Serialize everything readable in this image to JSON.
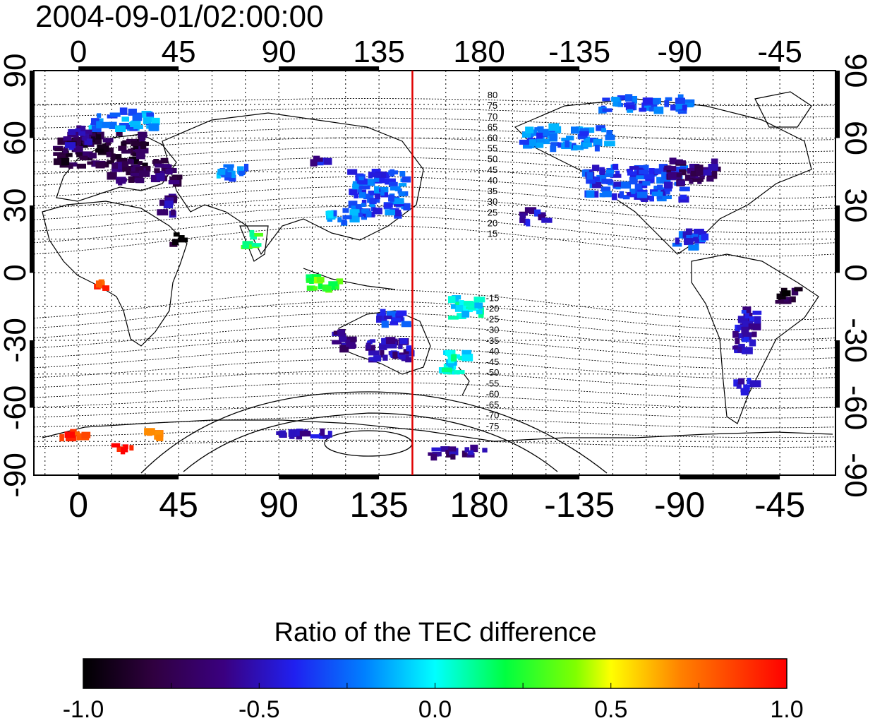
{
  "timestamp": "2004-09-01/02:00:00",
  "colorbar": {
    "title": "Ratio of the TEC difference",
    "ticks": [
      "-1.0",
      "-0.5",
      "0.0",
      "0.5",
      "1.0"
    ],
    "min": -1.0,
    "max": 1.0,
    "colors": [
      "#000000",
      "#3a0070",
      "#2a1ff0",
      "#0090ff",
      "#00ffff",
      "#00ff40",
      "#a0ff00",
      "#ffff00",
      "#ff8000",
      "#ff0000"
    ]
  },
  "axes": {
    "lon_ticks": [
      "0",
      "45",
      "90",
      "135",
      "180",
      "-135",
      "-90",
      "-45"
    ],
    "lat_ticks": [
      "90",
      "60",
      "30",
      "0",
      "-30",
      "-60",
      "-90"
    ]
  },
  "terminator_lon": 150,
  "contour_labels_north": [
    "80",
    "75",
    "70",
    "65",
    "60",
    "55",
    "50",
    "45",
    "40",
    "35",
    "30",
    "25",
    "20",
    "15"
  ],
  "contour_labels_south": [
    "-15",
    "-20",
    "-25",
    "-30",
    "-35",
    "-40",
    "-45",
    "-50",
    "-55",
    "-60",
    "-65",
    "-70",
    "-75"
  ],
  "chart_data": {
    "type": "heatmap",
    "projection": "cylindrical (longitude 0 to 360, latitude -90 to 90)",
    "xlim": [
      -20,
      340
    ],
    "ylim": [
      -90,
      90
    ],
    "value_range": [
      -1.0,
      1.0
    ],
    "regions": [
      {
        "lon": 10,
        "lat": 55,
        "w": 40,
        "h": 15,
        "value": -0.8
      },
      {
        "lon": 30,
        "lat": 45,
        "w": 30,
        "h": 10,
        "value": -0.7
      },
      {
        "lon": 20,
        "lat": 68,
        "w": 30,
        "h": 8,
        "value": -0.2
      },
      {
        "lon": 0,
        "lat": 60,
        "w": 10,
        "h": 10,
        "value": -0.55
      },
      {
        "lon": 40,
        "lat": 30,
        "w": 8,
        "h": 8,
        "value": -0.6
      },
      {
        "lon": 45,
        "lat": 15,
        "w": 5,
        "h": 5,
        "value": -0.95
      },
      {
        "lon": 78,
        "lat": 15,
        "w": 6,
        "h": 8,
        "value": 0.2
      },
      {
        "lon": 70,
        "lat": 45,
        "w": 15,
        "h": 6,
        "value": -0.2
      },
      {
        "lon": 110,
        "lat": 50,
        "w": 12,
        "h": 3,
        "value": -0.5
      },
      {
        "lon": 135,
        "lat": 35,
        "w": 25,
        "h": 20,
        "value": -0.3
      },
      {
        "lon": 120,
        "lat": 25,
        "w": 15,
        "h": 6,
        "value": -0.2
      },
      {
        "lon": 110,
        "lat": -5,
        "w": 15,
        "h": 6,
        "value": 0.3
      },
      {
        "lon": 140,
        "lat": -20,
        "w": 15,
        "h": 6,
        "value": -0.4
      },
      {
        "lon": 140,
        "lat": -35,
        "w": 20,
        "h": 10,
        "value": -0.55
      },
      {
        "lon": 118,
        "lat": -30,
        "w": 10,
        "h": 8,
        "value": -0.6
      },
      {
        "lon": 170,
        "lat": -40,
        "w": 12,
        "h": 10,
        "value": 0.0
      },
      {
        "lon": 175,
        "lat": -15,
        "w": 15,
        "h": 10,
        "value": 0.0
      },
      {
        "lon": 220,
        "lat": 60,
        "w": 40,
        "h": 10,
        "value": -0.25
      },
      {
        "lon": 250,
        "lat": 40,
        "w": 45,
        "h": 15,
        "value": -0.35
      },
      {
        "lon": 275,
        "lat": 45,
        "w": 25,
        "h": 10,
        "value": -0.65
      },
      {
        "lon": 255,
        "lat": 75,
        "w": 40,
        "h": 6,
        "value": -0.3
      },
      {
        "lon": 205,
        "lat": 25,
        "w": 12,
        "h": 6,
        "value": -0.5
      },
      {
        "lon": 275,
        "lat": 15,
        "w": 15,
        "h": 8,
        "value": -0.35
      },
      {
        "lon": 300,
        "lat": -25,
        "w": 10,
        "h": 20,
        "value": -0.5
      },
      {
        "lon": 318,
        "lat": -10,
        "w": 12,
        "h": 6,
        "value": -0.85
      },
      {
        "lon": 300,
        "lat": -50,
        "w": 10,
        "h": 6,
        "value": -0.5
      },
      {
        "lon": 10,
        "lat": -5,
        "w": 5,
        "h": 5,
        "value": 0.9
      },
      {
        "lon": 0,
        "lat": -72,
        "w": 15,
        "h": 3,
        "value": 0.85
      },
      {
        "lon": 20,
        "lat": -78,
        "w": 8,
        "h": 3,
        "value": 1.0
      },
      {
        "lon": 35,
        "lat": -72,
        "w": 8,
        "h": 3,
        "value": 0.8
      },
      {
        "lon": 100,
        "lat": -72,
        "w": 30,
        "h": 3,
        "value": -0.5
      },
      {
        "lon": 170,
        "lat": -80,
        "w": 25,
        "h": 4,
        "value": -0.6
      }
    ]
  }
}
